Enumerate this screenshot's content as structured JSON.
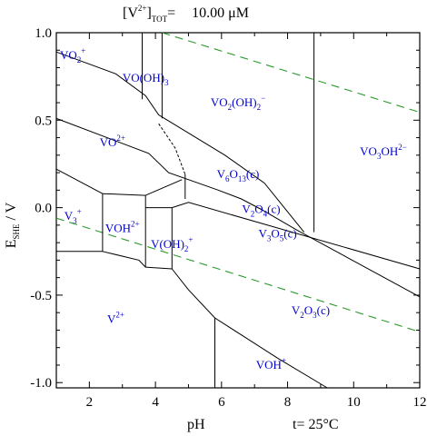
{
  "header": {
    "title_main": "[V",
    "title_sup": "2+",
    "title_close": "]",
    "title_sub": "TOT",
    "title_eq": "=",
    "title_value": "10.00 μM"
  },
  "footer": {
    "temperature": "t= 25°C"
  },
  "chart_data": {
    "type": "diagram",
    "xlabel": "pH",
    "ylabel_main": "E",
    "ylabel_sub": "SHE",
    "ylabel_unit": " / V",
    "xlim": [
      1,
      12
    ],
    "ylim": [
      -1.03,
      1.0
    ],
    "x_ticks": [
      {
        "value": 2,
        "label": "2"
      },
      {
        "value": 4,
        "label": "4"
      },
      {
        "value": 6,
        "label": "6"
      },
      {
        "value": 8,
        "label": "8"
      },
      {
        "value": 10,
        "label": "10"
      },
      {
        "value": 12,
        "label": "12"
      }
    ],
    "y_ticks": [
      {
        "value": 1.0,
        "label": "1.0"
      },
      {
        "value": 0.5,
        "label": "0.5"
      },
      {
        "value": 0.0,
        "label": "0.0"
      },
      {
        "value": -0.5,
        "label": "-0.5"
      },
      {
        "value": -1.0,
        "label": "-1.0"
      }
    ],
    "water_lines": [
      {
        "name": "O2/H2O",
        "points": [
          [
            4.2,
            1.0
          ],
          [
            12,
            0.545
          ]
        ]
      },
      {
        "name": "H2O/H2",
        "points": [
          [
            1,
            -0.06
          ],
          [
            12,
            -0.71
          ]
        ]
      }
    ],
    "boundaries": [
      {
        "points": [
          [
            1,
            0.89
          ],
          [
            2.8,
            0.765
          ],
          [
            3.7,
            0.64
          ],
          [
            4.1,
            0.53
          ],
          [
            6.1,
            0.3
          ],
          [
            7.3,
            0.14
          ],
          [
            8.5,
            -0.14
          ]
        ],
        "dashed": false
      },
      {
        "points": [
          [
            3.6,
            1.0
          ],
          [
            3.6,
            0.62
          ]
        ],
        "dashed": false
      },
      {
        "points": [
          [
            4.2,
            1.0
          ],
          [
            4.2,
            0.51
          ]
        ],
        "dashed": false
      },
      {
        "points": [
          [
            1,
            0.51
          ],
          [
            3.8,
            0.31
          ],
          [
            4.4,
            0.2
          ],
          [
            5.9,
            0.1
          ],
          [
            6.6,
            0.05
          ],
          [
            7.2,
            -0.01
          ],
          [
            8.3,
            -0.13
          ],
          [
            12,
            -0.51
          ]
        ],
        "dashed": false
      },
      {
        "points": [
          [
            4.1,
            0.48
          ],
          [
            4.6,
            0.34
          ],
          [
            4.9,
            0.19
          ]
        ],
        "dashed": true
      },
      {
        "points": [
          [
            1,
            0.22
          ],
          [
            2.4,
            0.08
          ]
        ],
        "dashed": false
      },
      {
        "points": [
          [
            2.4,
            0.08
          ],
          [
            3.7,
            0.07
          ]
        ],
        "dashed": false
      },
      {
        "points": [
          [
            3.7,
            0.07
          ],
          [
            4.8,
            0.16
          ]
        ],
        "dashed": false
      },
      {
        "points": [
          [
            4.9,
            0.19
          ],
          [
            4.9,
            0.05
          ]
        ],
        "dashed": false
      },
      {
        "points": [
          [
            2.4,
            0.08
          ],
          [
            2.4,
            -0.25
          ]
        ],
        "dashed": false
      },
      {
        "points": [
          [
            1,
            -0.25
          ],
          [
            2.4,
            -0.25
          ]
        ],
        "dashed": false
      },
      {
        "points": [
          [
            2.4,
            -0.25
          ],
          [
            3.5,
            -0.3
          ],
          [
            3.7,
            -0.34
          ]
        ],
        "dashed": false
      },
      {
        "points": [
          [
            3.7,
            0.07
          ],
          [
            3.7,
            -0.34
          ]
        ],
        "dashed": false
      },
      {
        "points": [
          [
            3.7,
            -0.34
          ],
          [
            4.5,
            -0.35
          ]
        ],
        "dashed": false
      },
      {
        "points": [
          [
            3.7,
            0.0
          ],
          [
            4.5,
            0.0
          ]
        ],
        "dashed": false
      },
      {
        "points": [
          [
            4.5,
            0.0
          ],
          [
            4.5,
            -0.35
          ]
        ],
        "dashed": false
      },
      {
        "points": [
          [
            4.5,
            0.0
          ],
          [
            5.0,
            0.03
          ],
          [
            12,
            -0.35
          ]
        ],
        "dashed": false
      },
      {
        "points": [
          [
            4.5,
            -0.35
          ],
          [
            5.0,
            -0.47
          ],
          [
            5.8,
            -0.63
          ],
          [
            7.7,
            -0.86
          ],
          [
            9.2,
            -1.03
          ]
        ],
        "dashed": false
      },
      {
        "points": [
          [
            5.8,
            -0.63
          ],
          [
            5.8,
            -1.03
          ]
        ],
        "dashed": false
      },
      {
        "points": [
          [
            8.8,
            1.0
          ],
          [
            8.8,
            -0.14
          ]
        ],
        "dashed": false
      }
    ],
    "species": [
      {
        "main": "VO",
        "sub": "2",
        "sup": "+",
        "tail": "",
        "x": 1.5,
        "y": 0.85
      },
      {
        "main": "VO(OH)",
        "sub": "3",
        "sup": "",
        "tail": "",
        "x": 3.7,
        "y": 0.72
      },
      {
        "main": "VO",
        "sub": "2",
        "sup": "",
        "tail": "(OH)",
        "tail_sub": "2",
        "tail_sup": "−",
        "x": 6.5,
        "y": 0.58
      },
      {
        "main": "VO",
        "sub": "",
        "sup": "2+",
        "tail": "",
        "x": 2.7,
        "y": 0.35
      },
      {
        "main": "VO",
        "sub": "3",
        "sup": "",
        "tail": "OH",
        "tail_sub": "",
        "tail_sup": "2−",
        "x": 10.9,
        "y": 0.3
      },
      {
        "main": "V",
        "sub": "6",
        "sup": "",
        "tail": "O",
        "tail_sub": "13",
        "tail_sup": "",
        "tail2": "(c)",
        "x": 6.5,
        "y": 0.17
      },
      {
        "main": "V",
        "sub": "2",
        "sup": "",
        "tail": "O",
        "tail_sub": "4",
        "tail_sup": "",
        "tail2": "(c)",
        "x": 7.2,
        "y": -0.03
      },
      {
        "main": "V",
        "sub": "3",
        "sup": "+",
        "tail": "",
        "x": 1.5,
        "y": -0.07
      },
      {
        "main": "VOH",
        "sub": "",
        "sup": "2+",
        "tail": "",
        "x": 3.0,
        "y": -0.14
      },
      {
        "main": "V",
        "sub": "3",
        "sup": "",
        "tail": "O",
        "tail_sub": "5",
        "tail_sup": "",
        "tail2": "(c)",
        "x": 7.7,
        "y": -0.17
      },
      {
        "main": "V(OH)",
        "sub": "2",
        "sup": "+",
        "tail": "",
        "x": 4.5,
        "y": -0.23
      },
      {
        "main": "V",
        "sub": "2",
        "sup": "",
        "tail": "O",
        "tail_sub": "3",
        "tail_sup": "",
        "tail2": "(c)",
        "x": 8.7,
        "y": -0.61
      },
      {
        "main": "V",
        "sub": "",
        "sup": "2+",
        "tail": "",
        "x": 2.8,
        "y": -0.66
      },
      {
        "main": "VOH",
        "sub": "",
        "sup": "+",
        "tail": "",
        "x": 7.5,
        "y": -0.92
      }
    ]
  }
}
